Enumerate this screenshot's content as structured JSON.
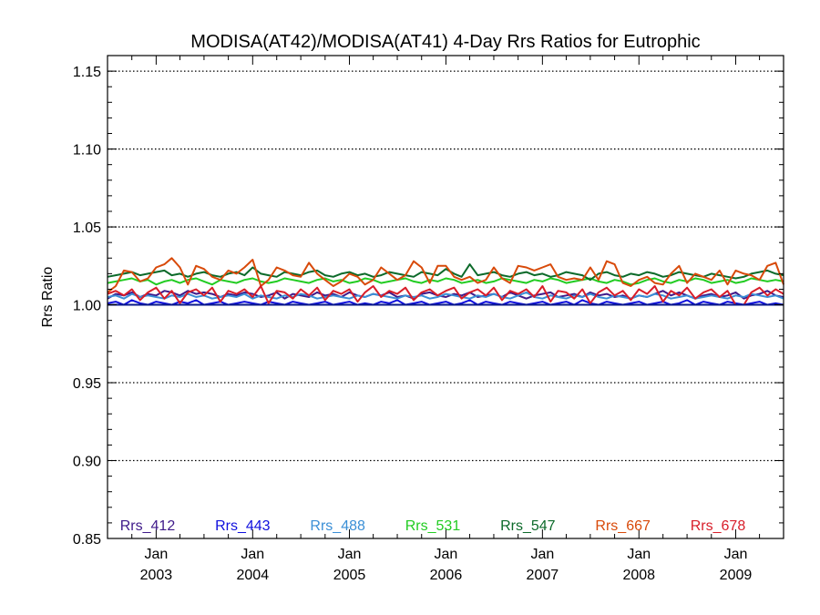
{
  "chart_data": {
    "type": "line",
    "title": "MODISA(AT42)/MODISA(AT41) 4-Day Rrs Ratios for Eutrophic",
    "xlabel": "",
    "ylabel": "Rrs Ratio",
    "ylim": [
      0.85,
      1.16
    ],
    "xlim": [
      "2002-07-01",
      "2009-07-01"
    ],
    "y_ticks": [
      "0.85",
      "0.90",
      "0.95",
      "1.00",
      "1.05",
      "1.10",
      "1.15"
    ],
    "x_ticks": [
      {
        "month": "Jan",
        "year": "2003",
        "date": "2003-01-01"
      },
      {
        "month": "Jan",
        "year": "2004",
        "date": "2004-01-01"
      },
      {
        "month": "Jan",
        "year": "2005",
        "date": "2005-01-01"
      },
      {
        "month": "Jan",
        "year": "2006",
        "date": "2006-01-01"
      },
      {
        "month": "Jan",
        "year": "2007",
        "date": "2007-01-01"
      },
      {
        "month": "Jan",
        "year": "2008",
        "date": "2008-01-01"
      },
      {
        "month": "Jan",
        "year": "2009",
        "date": "2009-01-01"
      }
    ],
    "grid": "horizontal dotted",
    "legend_position": "bottom",
    "x_dates": [
      "2002-07-01",
      "2002-08-01",
      "2002-09-01",
      "2002-10-01",
      "2002-11-01",
      "2002-12-01",
      "2003-01-01",
      "2003-02-01",
      "2003-03-01",
      "2003-04-01",
      "2003-05-01",
      "2003-06-01",
      "2003-07-01",
      "2003-08-01",
      "2003-09-01",
      "2003-10-01",
      "2003-11-01",
      "2003-12-01",
      "2004-01-01",
      "2004-02-01",
      "2004-03-01",
      "2004-04-01",
      "2004-05-01",
      "2004-06-01",
      "2004-07-01",
      "2004-08-01",
      "2004-09-01",
      "2004-10-01",
      "2004-11-01",
      "2004-12-01",
      "2005-01-01",
      "2005-02-01",
      "2005-03-01",
      "2005-04-01",
      "2005-05-01",
      "2005-06-01",
      "2005-07-01",
      "2005-08-01",
      "2005-09-01",
      "2005-10-01",
      "2005-11-01",
      "2005-12-01",
      "2006-01-01",
      "2006-02-01",
      "2006-03-01",
      "2006-04-01",
      "2006-05-01",
      "2006-06-01",
      "2006-07-01",
      "2006-08-01",
      "2006-09-01",
      "2006-10-01",
      "2006-11-01",
      "2006-12-01",
      "2007-01-01",
      "2007-02-01",
      "2007-03-01",
      "2007-04-01",
      "2007-05-01",
      "2007-06-01",
      "2007-07-01",
      "2007-08-01",
      "2007-09-01",
      "2007-10-01",
      "2007-11-01",
      "2007-12-01",
      "2008-01-01",
      "2008-02-01",
      "2008-03-01",
      "2008-04-01",
      "2008-05-01",
      "2008-06-01",
      "2008-07-01",
      "2008-08-01",
      "2008-09-01",
      "2008-10-01",
      "2008-11-01",
      "2008-12-01",
      "2009-01-01",
      "2009-02-01",
      "2009-03-01",
      "2009-04-01",
      "2009-05-01",
      "2009-06-01",
      "2009-07-01"
    ],
    "series": [
      {
        "name": "Rrs_412",
        "color": "#3f1a8a",
        "values": [
          1.004,
          1.007,
          1.006,
          1.008,
          1.005,
          1.007,
          1.006,
          1.009,
          1.008,
          1.006,
          1.009,
          1.007,
          1.008,
          1.007,
          1.005,
          1.007,
          1.006,
          1.008,
          1.007,
          1.005,
          1.006,
          1.008,
          1.004,
          1.007,
          1.006,
          1.005,
          1.008,
          1.006,
          1.007,
          1.005,
          1.008,
          1.006,
          1.005,
          1.007,
          1.006,
          1.008,
          1.005,
          1.006,
          1.004,
          1.007,
          1.008,
          1.006,
          1.005,
          1.007,
          1.006,
          1.008,
          1.005,
          1.006,
          1.007,
          1.005,
          1.008,
          1.006,
          1.004,
          1.006,
          1.007,
          1.008,
          1.005,
          1.006,
          1.007,
          1.005,
          1.008,
          1.006,
          1.007,
          1.005,
          1.006,
          1.004,
          1.006,
          1.005,
          1.007,
          1.009,
          1.006,
          1.008,
          1.006,
          1.004,
          1.006,
          1.007,
          1.005,
          1.006,
          1.008,
          1.004,
          1.006,
          1.007,
          1.009,
          1.006,
          1.005
        ]
      },
      {
        "name": "Rrs_443",
        "color": "#1010dd",
        "values": [
          1.001,
          1.002,
          1.0,
          1.003,
          1.001,
          1.0,
          1.002,
          1.001,
          1.0,
          1.002,
          1.001,
          1.003,
          1.0,
          1.001,
          1.002,
          1.0,
          1.001,
          1.002,
          1.001,
          1.0,
          1.002,
          1.001,
          1.0,
          1.002,
          1.001,
          1.0,
          1.001,
          1.002,
          1.0,
          1.001,
          1.002,
          1.0,
          1.001,
          1.0,
          1.002,
          1.001,
          1.003,
          1.0,
          1.001,
          1.002,
          1.0,
          1.001,
          1.002,
          1.0,
          1.001,
          1.003,
          1.0,
          1.002,
          1.001,
          1.0,
          1.002,
          1.001,
          1.0,
          1.001,
          1.002,
          1.0,
          1.001,
          1.002,
          1.0,
          1.003,
          1.001,
          1.0,
          1.002,
          1.001,
          1.0,
          1.001,
          1.002,
          1.0,
          1.001,
          1.002,
          1.0,
          1.001,
          1.003,
          1.0,
          1.002,
          1.001,
          1.0,
          1.002,
          1.001,
          1.0,
          1.001,
          1.002,
          1.0,
          1.001,
          1.0
        ]
      },
      {
        "name": "Rrs_488",
        "color": "#3a8fd6",
        "values": [
          1.005,
          1.006,
          1.004,
          1.007,
          1.005,
          1.006,
          1.005,
          1.004,
          1.006,
          1.005,
          1.007,
          1.005,
          1.006,
          1.004,
          1.005,
          1.006,
          1.005,
          1.007,
          1.004,
          1.006,
          1.005,
          1.004,
          1.006,
          1.005,
          1.007,
          1.006,
          1.004,
          1.005,
          1.006,
          1.005,
          1.004,
          1.006,
          1.005,
          1.007,
          1.006,
          1.005,
          1.004,
          1.006,
          1.005,
          1.006,
          1.004,
          1.005,
          1.007,
          1.006,
          1.005,
          1.004,
          1.006,
          1.005,
          1.007,
          1.005,
          1.004,
          1.006,
          1.008,
          1.005,
          1.004,
          1.006,
          1.005,
          1.004,
          1.006,
          1.005,
          1.007,
          1.005,
          1.004,
          1.006,
          1.005,
          1.004,
          1.006,
          1.005,
          1.007,
          1.006,
          1.004,
          1.005,
          1.006,
          1.004,
          1.005,
          1.006,
          1.005,
          1.004,
          1.006,
          1.005,
          1.007,
          1.006,
          1.005,
          1.006,
          1.004
        ]
      },
      {
        "name": "Rrs_531",
        "color": "#22cc22",
        "values": [
          1.014,
          1.015,
          1.016,
          1.017,
          1.015,
          1.016,
          1.013,
          1.015,
          1.016,
          1.014,
          1.016,
          1.017,
          1.015,
          1.013,
          1.016,
          1.015,
          1.014,
          1.016,
          1.017,
          1.015,
          1.014,
          1.015,
          1.017,
          1.016,
          1.015,
          1.014,
          1.016,
          1.017,
          1.015,
          1.016,
          1.014,
          1.015,
          1.017,
          1.016,
          1.014,
          1.015,
          1.016,
          1.017,
          1.015,
          1.014,
          1.016,
          1.015,
          1.017,
          1.016,
          1.014,
          1.015,
          1.016,
          1.014,
          1.015,
          1.017,
          1.016,
          1.015,
          1.014,
          1.016,
          1.015,
          1.017,
          1.016,
          1.014,
          1.015,
          1.016,
          1.017,
          1.015,
          1.014,
          1.016,
          1.015,
          1.013,
          1.014,
          1.016,
          1.017,
          1.015,
          1.014,
          1.016,
          1.015,
          1.017,
          1.016,
          1.014,
          1.015,
          1.016,
          1.014,
          1.015,
          1.017,
          1.016,
          1.015,
          1.016,
          1.015
        ]
      },
      {
        "name": "Rrs_547",
        "color": "#0c6a2a",
        "values": [
          1.018,
          1.019,
          1.02,
          1.021,
          1.019,
          1.02,
          1.021,
          1.022,
          1.019,
          1.02,
          1.018,
          1.02,
          1.021,
          1.019,
          1.018,
          1.02,
          1.021,
          1.019,
          1.024,
          1.02,
          1.019,
          1.018,
          1.021,
          1.02,
          1.019,
          1.021,
          1.022,
          1.019,
          1.018,
          1.02,
          1.021,
          1.019,
          1.02,
          1.018,
          1.019,
          1.021,
          1.02,
          1.019,
          1.018,
          1.021,
          1.02,
          1.019,
          1.023,
          1.02,
          1.018,
          1.026,
          1.019,
          1.02,
          1.021,
          1.019,
          1.018,
          1.02,
          1.021,
          1.019,
          1.02,
          1.018,
          1.019,
          1.021,
          1.02,
          1.019,
          1.016,
          1.02,
          1.021,
          1.019,
          1.018,
          1.02,
          1.019,
          1.021,
          1.02,
          1.018,
          1.019,
          1.021,
          1.02,
          1.019,
          1.018,
          1.02,
          1.019,
          1.018,
          1.017,
          1.018,
          1.02,
          1.021,
          1.022,
          1.02,
          1.019
        ]
      },
      {
        "name": "Rrs_667",
        "color": "#d84a0a",
        "values": [
          1.008,
          1.012,
          1.022,
          1.021,
          1.015,
          1.017,
          1.024,
          1.026,
          1.03,
          1.024,
          1.013,
          1.025,
          1.023,
          1.018,
          1.016,
          1.022,
          1.02,
          1.024,
          1.029,
          1.012,
          1.016,
          1.024,
          1.022,
          1.019,
          1.018,
          1.027,
          1.02,
          1.016,
          1.012,
          1.015,
          1.02,
          1.018,
          1.013,
          1.016,
          1.024,
          1.02,
          1.016,
          1.019,
          1.028,
          1.024,
          1.014,
          1.025,
          1.025,
          1.018,
          1.016,
          1.018,
          1.014,
          1.016,
          1.024,
          1.017,
          1.014,
          1.025,
          1.024,
          1.022,
          1.024,
          1.026,
          1.018,
          1.016,
          1.017,
          1.016,
          1.024,
          1.016,
          1.028,
          1.026,
          1.014,
          1.012,
          1.016,
          1.018,
          1.014,
          1.013,
          1.02,
          1.025,
          1.014,
          1.02,
          1.018,
          1.016,
          1.022,
          1.013,
          1.022,
          1.02,
          1.019,
          1.016,
          1.025,
          1.027,
          1.013
        ]
      },
      {
        "name": "Rrs_678",
        "color": "#d81e2a",
        "values": [
          1.007,
          1.009,
          1.006,
          1.01,
          1.003,
          1.008,
          1.011,
          1.004,
          1.009,
          1.001,
          1.008,
          1.01,
          1.006,
          1.011,
          1.002,
          1.009,
          1.007,
          1.01,
          1.005,
          1.012,
          1.001,
          1.009,
          1.008,
          1.004,
          1.01,
          1.006,
          1.011,
          1.003,
          1.009,
          1.007,
          1.01,
          1.002,
          1.008,
          1.012,
          1.005,
          1.009,
          1.007,
          1.011,
          1.003,
          1.008,
          1.01,
          1.006,
          1.009,
          1.011,
          1.004,
          1.008,
          1.01,
          1.006,
          1.011,
          1.003,
          1.009,
          1.007,
          1.01,
          1.005,
          1.012,
          1.002,
          1.009,
          1.008,
          1.004,
          1.01,
          1.001,
          1.008,
          1.011,
          1.006,
          1.009,
          1.003,
          1.01,
          1.007,
          1.012,
          1.002,
          1.009,
          1.006,
          1.011,
          1.004,
          1.008,
          1.01,
          1.005,
          1.009,
          1.0,
          1.0,
          1.008,
          1.011,
          1.006,
          1.01,
          1.007
        ]
      }
    ]
  }
}
